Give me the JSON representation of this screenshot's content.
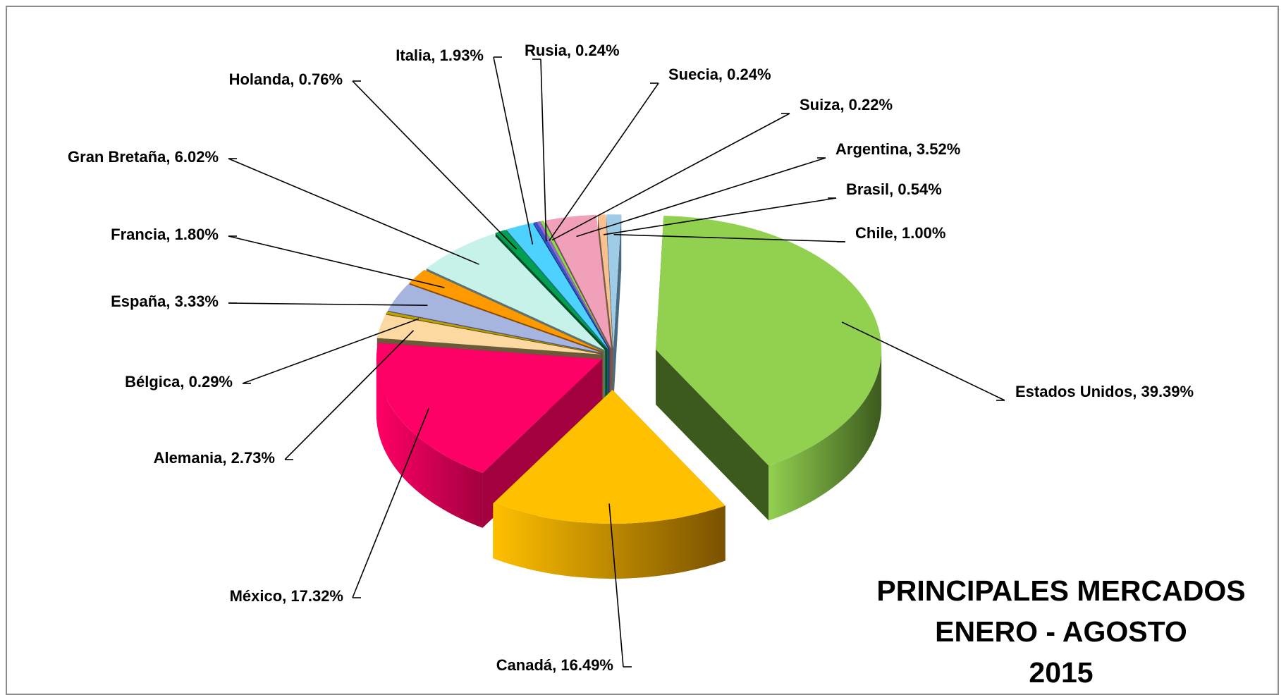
{
  "chart_data": {
    "type": "pie",
    "style": "3d-exploded",
    "title_lines": [
      "PRINCIPALES MERCADOS",
      "ENERO - AGOSTO",
      "2015"
    ],
    "slices": [
      {
        "name": "Estados Unidos",
        "value": 39.39,
        "label": "Estados Unidos, 39.39%",
        "color": "#92d050",
        "dark": "#3c5a1e"
      },
      {
        "name": "Canadá",
        "value": 16.49,
        "label": "Canadá, 16.49%",
        "color": "#ffc000",
        "dark": "#7a5200"
      },
      {
        "name": "México",
        "value": 17.32,
        "label": "México, 17.32%",
        "color": "#ff0066",
        "dark": "#a3003f"
      },
      {
        "name": "Alemania",
        "value": 2.73,
        "label": "Alemania, 2.73%",
        "color": "#fcd9a0",
        "dark": "#6b5a3a"
      },
      {
        "name": "Bélgica",
        "value": 0.29,
        "label": "Bélgica, 0.29%",
        "color": "#c0a000",
        "dark": "#6b5a00"
      },
      {
        "name": "España",
        "value": 3.33,
        "label": "España, 3.33%",
        "color": "#a6b4e0",
        "dark": "#4a5380"
      },
      {
        "name": "Francia",
        "value": 1.8,
        "label": "Francia, 1.80%",
        "color": "#ff9900",
        "dark": "#8a4a00"
      },
      {
        "name": "Gran Bretaña",
        "value": 6.02,
        "label": "Gran Bretaña, 6.02%",
        "color": "#c6f2ea",
        "dark": "#5b7470"
      },
      {
        "name": "Holanda",
        "value": 0.76,
        "label": "Holanda, 0.76%",
        "color": "#00a050",
        "dark": "#004d26"
      },
      {
        "name": "Italia",
        "value": 1.93,
        "label": "Italia, 1.93%",
        "color": "#4dd2ff",
        "dark": "#1f6a85"
      },
      {
        "name": "Rusia",
        "value": 0.24,
        "label": "Rusia, 0.24%",
        "color": "#3355cc",
        "dark": "#1a2b66"
      },
      {
        "name": "Suecia",
        "value": 0.24,
        "label": "Suecia, 0.24%",
        "color": "#9966cc",
        "dark": "#4d3366"
      },
      {
        "name": "Suiza",
        "value": 0.22,
        "label": "Suiza, 0.22%",
        "color": "#88dd44",
        "dark": "#446e22"
      },
      {
        "name": "Argentina",
        "value": 3.52,
        "label": "Argentina, 3.52%",
        "color": "#f0a0b8",
        "dark": "#7a4a5a"
      },
      {
        "name": "Brasil",
        "value": 0.54,
        "label": "Brasil, 0.54%",
        "color": "#f9c090",
        "dark": "#7a5a40"
      },
      {
        "name": "Chile",
        "value": 1.0,
        "label": "Chile, 1.00%",
        "color": "#9ecbe6",
        "dark": "#4a6a80"
      }
    ]
  }
}
